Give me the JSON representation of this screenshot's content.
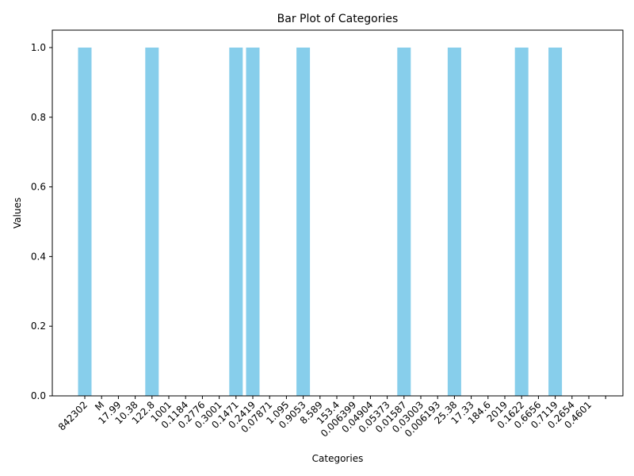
{
  "chart_data": {
    "type": "bar",
    "title": "Bar Plot of Categories",
    "xlabel": "Categories",
    "ylabel": "Values",
    "ylim": [
      0,
      1.05
    ],
    "yticks": [
      0.0,
      0.2,
      0.4,
      0.6,
      0.8,
      1.0
    ],
    "ytick_labels": [
      "0.0",
      "0.2",
      "0.4",
      "0.6",
      "0.8",
      "1.0"
    ],
    "grid": false,
    "legend": "none",
    "bar_color": "#87CEEB",
    "categories": [
      "842302",
      "M",
      "17.99",
      "10.38",
      "122.8",
      "1001",
      "0.1184",
      "0.2776",
      "0.3001",
      "0.1471",
      "0.2419",
      "0.07871",
      "1.095",
      "0.9053",
      "8.589",
      "153.4",
      "0.006399",
      "0.04904",
      "0.05373",
      "0.01587",
      "0.03003",
      "0.006193",
      "25.38",
      "17.33",
      "184.6",
      "2019",
      "0.1622",
      "0.6656",
      "0.7119",
      "0.2654",
      "0.4601",
      ""
    ],
    "values": [
      1,
      0,
      0,
      0,
      1,
      0,
      0,
      0,
      0,
      1,
      1,
      0,
      0,
      1,
      0,
      0,
      0,
      0,
      0,
      1,
      0,
      0,
      1,
      0,
      0,
      0,
      1,
      0,
      1,
      0,
      0,
      0
    ]
  }
}
